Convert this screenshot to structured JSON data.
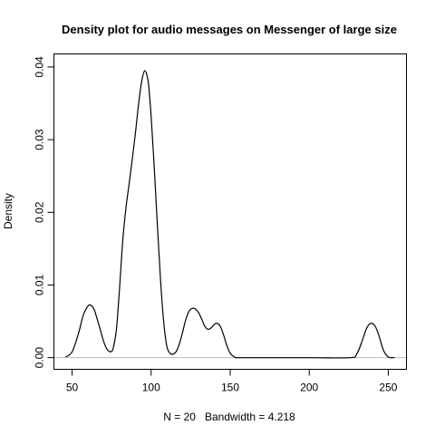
{
  "chart_data": {
    "type": "line",
    "title": "Density plot for audio messages on Messenger of large size",
    "xlabel": "N = 20   Bandwidth = 4.218",
    "ylabel": "Density",
    "xlim": [
      38.5,
      261.5
    ],
    "ylim": [
      -0.0016,
      0.0418
    ],
    "x_ticks": [
      50,
      100,
      150,
      200,
      250
    ],
    "x_tick_labels": [
      "50",
      "100",
      "150",
      "200",
      "250"
    ],
    "y_ticks": [
      0.0,
      0.01,
      0.02,
      0.03,
      0.04
    ],
    "y_tick_labels": [
      "0.00",
      "0.01",
      "0.02",
      "0.03",
      "0.04"
    ],
    "zero_line": true,
    "grid": false,
    "series": [
      {
        "x": [
          46,
          50,
          54,
          57,
          60,
          62,
          64,
          66,
          68,
          70,
          72,
          74,
          75,
          76,
          78,
          80,
          82,
          84,
          86,
          88,
          90,
          92,
          94,
          96,
          98,
          99,
          100,
          102,
          104,
          106,
          108,
          110,
          112,
          114,
          116,
          118,
          120,
          122,
          124,
          126,
          128,
          130,
          132,
          134,
          136,
          138,
          140,
          142,
          144,
          146,
          148,
          150,
          152,
          154,
          158,
          200,
          226,
          230,
          233,
          236,
          238,
          240,
          242,
          244,
          247,
          250,
          254
        ],
        "y": [
          0.0001,
          0.0008,
          0.0033,
          0.0058,
          0.0071,
          0.0072,
          0.0066,
          0.0052,
          0.0037,
          0.0022,
          0.0012,
          0.0008,
          0.0009,
          0.0013,
          0.0038,
          0.0095,
          0.016,
          0.0205,
          0.0238,
          0.0272,
          0.0308,
          0.0348,
          0.038,
          0.0395,
          0.0382,
          0.036,
          0.0332,
          0.026,
          0.018,
          0.0105,
          0.0048,
          0.0015,
          0.0006,
          0.0005,
          0.0009,
          0.002,
          0.0036,
          0.0053,
          0.0064,
          0.0068,
          0.0067,
          0.0062,
          0.0053,
          0.0043,
          0.0039,
          0.0041,
          0.0046,
          0.0047,
          0.0042,
          0.003,
          0.0016,
          0.0006,
          0.0002,
          0.0,
          0.0,
          0.0,
          0.0,
          0.0005,
          0.002,
          0.0039,
          0.0046,
          0.0047,
          0.0042,
          0.0031,
          0.001,
          0.0001,
          0.0
        ]
      }
    ]
  }
}
